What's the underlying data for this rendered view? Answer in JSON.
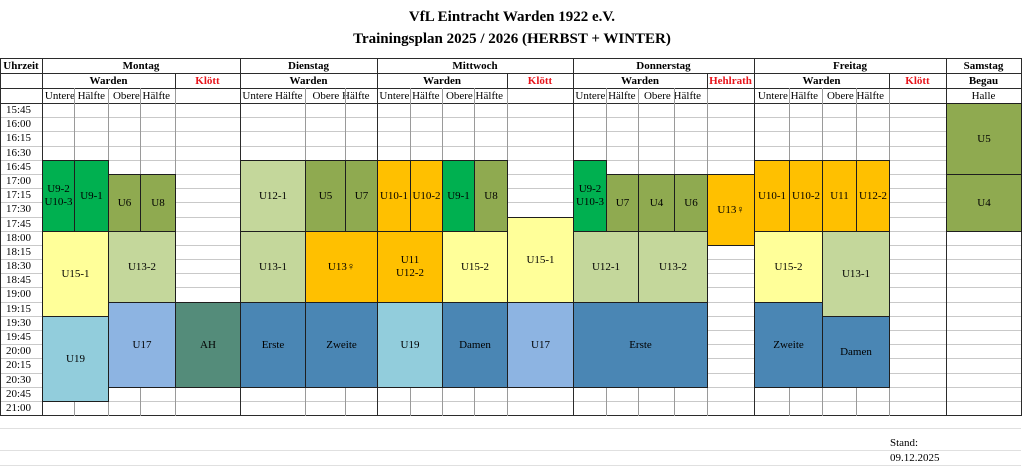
{
  "title": "VfL Eintracht Warden 1922 e.V.",
  "subtitle": "Trainingsplan 2025 / 2026 (HERBST + WINTER)",
  "header": {
    "uhrzeit": "Uhrzeit",
    "days": [
      "Montag",
      "Dienstag",
      "Mittwoch",
      "Donnerstag",
      "Freitag",
      "Samstag"
    ],
    "locations": [
      "Warden",
      "Klött",
      "Warden",
      "Warden",
      "Klött",
      "Warden",
      "Hehlrath",
      "Warden",
      "Klött",
      "Begau"
    ],
    "halves": [
      "Untere Hälfte",
      "Obere Hälfte",
      "Untere Hälfte",
      "Obere Hälfte",
      "Untere Hälfte",
      "Obere Hälfte",
      "Untere Hälfte",
      "Obere Hälfte",
      "Untere Hälfte",
      "Obere Hälfte",
      "Halle"
    ]
  },
  "times": [
    "15:45",
    "16:00",
    "16:15",
    "16:30",
    "16:45",
    "17:00",
    "17:15",
    "17:30",
    "17:45",
    "18:00",
    "18:15",
    "18:30",
    "18:45",
    "19:00",
    "19:15",
    "19:30",
    "19:45",
    "20:00",
    "20:15",
    "20:30",
    "20:45",
    "21:00"
  ],
  "colors": {
    "dark_green": "#00b050",
    "olive": "#8faa50",
    "light_green": "#c4d79b",
    "orange": "#ffc000",
    "yellow": "#ffff99",
    "steel_blue": "#4a86b4",
    "light_blue": "#92cddc",
    "blue": "#8db4e2",
    "teal": "#548c7a",
    "red_text": "#e8141b"
  },
  "sessions": [
    {
      "day": "Montag",
      "place": "Warden",
      "label": "U9-2\nU10-3",
      "start": "16:45",
      "end": "18:00",
      "color": "dark_green"
    },
    {
      "day": "Montag",
      "place": "Warden",
      "label": "U9-1",
      "start": "16:45",
      "end": "18:00",
      "color": "dark_green"
    },
    {
      "day": "Montag",
      "place": "Warden",
      "label": "U6",
      "start": "17:00",
      "end": "18:00",
      "color": "olive"
    },
    {
      "day": "Montag",
      "place": "Warden",
      "label": "U8",
      "start": "17:00",
      "end": "18:00",
      "color": "olive"
    },
    {
      "day": "Montag",
      "place": "Warden",
      "label": "U15-1",
      "start": "18:00",
      "end": "19:30",
      "color": "yellow"
    },
    {
      "day": "Montag",
      "place": "Warden",
      "label": "U13-2",
      "start": "18:00",
      "end": "19:15",
      "color": "light_green"
    },
    {
      "day": "Montag",
      "place": "Warden",
      "label": "U19",
      "start": "19:30",
      "end": "21:00",
      "color": "light_blue"
    },
    {
      "day": "Montag",
      "place": "Warden",
      "label": "U17",
      "start": "19:15",
      "end": "20:45",
      "color": "blue"
    },
    {
      "day": "Montag",
      "place": "Klött",
      "label": "AH",
      "start": "19:15",
      "end": "20:45",
      "color": "teal"
    },
    {
      "day": "Dienstag",
      "place": "Warden",
      "label": "U12-1",
      "start": "16:45",
      "end": "18:00",
      "color": "light_green"
    },
    {
      "day": "Dienstag",
      "place": "Warden",
      "label": "U5",
      "start": "16:45",
      "end": "18:00",
      "color": "olive"
    },
    {
      "day": "Dienstag",
      "place": "Warden",
      "label": "U7",
      "start": "16:45",
      "end": "18:00",
      "color": "olive"
    },
    {
      "day": "Dienstag",
      "place": "Warden",
      "label": "U13-1",
      "start": "18:00",
      "end": "19:15",
      "color": "light_green"
    },
    {
      "day": "Dienstag",
      "place": "Warden",
      "label": "U13♀",
      "start": "18:00",
      "end": "19:15",
      "color": "orange"
    },
    {
      "day": "Dienstag",
      "place": "Warden",
      "label": "Erste",
      "start": "19:15",
      "end": "20:45",
      "color": "steel_blue"
    },
    {
      "day": "Dienstag",
      "place": "Warden",
      "label": "Zweite",
      "start": "19:15",
      "end": "20:45",
      "color": "steel_blue"
    },
    {
      "day": "Mittwoch",
      "place": "Warden",
      "label": "U10-1",
      "start": "16:45",
      "end": "18:00",
      "color": "orange"
    },
    {
      "day": "Mittwoch",
      "place": "Warden",
      "label": "U10-2",
      "start": "16:45",
      "end": "18:00",
      "color": "orange"
    },
    {
      "day": "Mittwoch",
      "place": "Warden",
      "label": "U9-1",
      "start": "16:45",
      "end": "18:00",
      "color": "dark_green"
    },
    {
      "day": "Mittwoch",
      "place": "Warden",
      "label": "U8",
      "start": "16:45",
      "end": "18:00",
      "color": "olive"
    },
    {
      "day": "Mittwoch",
      "place": "Warden",
      "label": "U11\nU12-2",
      "start": "18:00",
      "end": "19:15",
      "color": "orange"
    },
    {
      "day": "Mittwoch",
      "place": "Warden",
      "label": "U15-2",
      "start": "18:00",
      "end": "19:15",
      "color": "yellow"
    },
    {
      "day": "Mittwoch",
      "place": "Klött",
      "label": "U15-1",
      "start": "17:45",
      "end": "19:15",
      "color": "yellow"
    },
    {
      "day": "Mittwoch",
      "place": "Warden",
      "label": "U19",
      "start": "19:15",
      "end": "20:45",
      "color": "light_blue"
    },
    {
      "day": "Mittwoch",
      "place": "Warden",
      "label": "Damen",
      "start": "19:15",
      "end": "20:45",
      "color": "steel_blue"
    },
    {
      "day": "Mittwoch",
      "place": "Klött",
      "label": "U17",
      "start": "19:15",
      "end": "20:45",
      "color": "blue"
    },
    {
      "day": "Donnerstag",
      "place": "Warden",
      "label": "U9-2\nU10-3",
      "start": "16:45",
      "end": "18:00",
      "color": "dark_green"
    },
    {
      "day": "Donnerstag",
      "place": "Warden",
      "label": "U7",
      "start": "17:00",
      "end": "18:00",
      "color": "olive"
    },
    {
      "day": "Donnerstag",
      "place": "Warden",
      "label": "U4",
      "start": "17:00",
      "end": "18:00",
      "color": "olive"
    },
    {
      "day": "Donnerstag",
      "place": "Warden",
      "label": "U6",
      "start": "17:00",
      "end": "18:00",
      "color": "olive"
    },
    {
      "day": "Donnerstag",
      "place": "Hehlrath",
      "label": "U13♀",
      "start": "17:00",
      "end": "18:15",
      "color": "orange"
    },
    {
      "day": "Donnerstag",
      "place": "Warden",
      "label": "U12-1",
      "start": "18:00",
      "end": "19:15",
      "color": "light_green"
    },
    {
      "day": "Donnerstag",
      "place": "Warden",
      "label": "U13-2",
      "start": "18:00",
      "end": "19:15",
      "color": "light_green"
    },
    {
      "day": "Donnerstag",
      "place": "Warden",
      "label": "Erste",
      "start": "19:15",
      "end": "20:45",
      "color": "steel_blue"
    },
    {
      "day": "Freitag",
      "place": "Warden",
      "label": "U10-1",
      "start": "16:45",
      "end": "18:00",
      "color": "orange"
    },
    {
      "day": "Freitag",
      "place": "Warden",
      "label": "U10-2",
      "start": "16:45",
      "end": "18:00",
      "color": "orange"
    },
    {
      "day": "Freitag",
      "place": "Warden",
      "label": "U11",
      "start": "16:45",
      "end": "18:00",
      "color": "orange"
    },
    {
      "day": "Freitag",
      "place": "Warden",
      "label": "U12-2",
      "start": "16:45",
      "end": "18:00",
      "color": "orange"
    },
    {
      "day": "Freitag",
      "place": "Warden",
      "label": "U15-2",
      "start": "18:00",
      "end": "19:15",
      "color": "yellow"
    },
    {
      "day": "Freitag",
      "place": "Warden",
      "label": "U13-1",
      "start": "18:00",
      "end": "19:30",
      "color": "light_green"
    },
    {
      "day": "Freitag",
      "place": "Warden",
      "label": "Zweite",
      "start": "19:15",
      "end": "20:45",
      "color": "steel_blue"
    },
    {
      "day": "Freitag",
      "place": "Warden",
      "label": "Damen",
      "start": "19:30",
      "end": "20:45",
      "color": "steel_blue"
    },
    {
      "day": "Samstag",
      "place": "Begau",
      "label": "U5",
      "start": "15:45",
      "end": "17:00",
      "color": "olive"
    },
    {
      "day": "Samstag",
      "place": "Begau",
      "label": "U4",
      "start": "17:00",
      "end": "18:00",
      "color": "olive"
    }
  ],
  "stand": {
    "label": "Stand:",
    "date": "09.12.2025"
  }
}
